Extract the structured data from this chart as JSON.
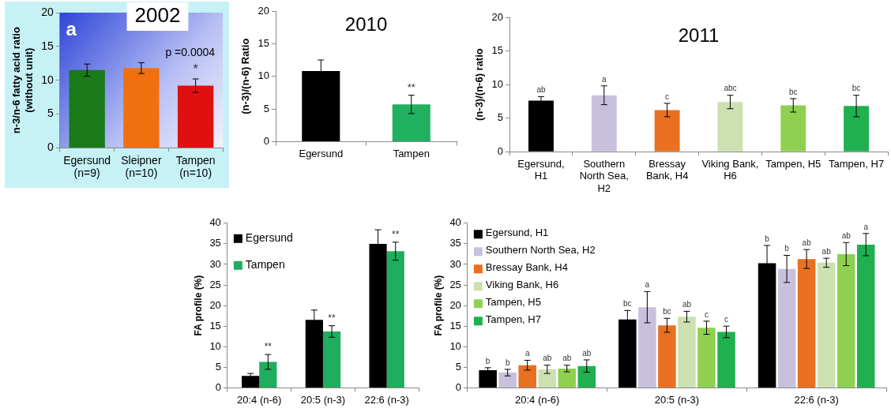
{
  "chart_data": [
    {
      "type": "bar",
      "title": "2002",
      "ylabel": "n-3/n-6 fatty acid ratio\n(without unit)",
      "categories": [
        "Egersund\n(n=9)",
        "Sleipner\n(n=10)",
        "Tampen\n(n=10)"
      ],
      "values": [
        11.5,
        11.8,
        9.2
      ],
      "errors": [
        0.9,
        0.8,
        1.0
      ],
      "value_labels": [
        null,
        null,
        "*"
      ],
      "colors": [
        "#1a7a1a",
        "#f07010",
        "#e01010"
      ],
      "ylim": [
        0,
        20
      ],
      "yticks": [
        0,
        5,
        10,
        15,
        20
      ],
      "annotations": [
        "a",
        "p =0.0004"
      ]
    },
    {
      "type": "bar",
      "title": "2010",
      "ylabel": "(n-3)/(n-6) Ratio",
      "categories": [
        "Egersund",
        "Tampen"
      ],
      "values": [
        10.8,
        5.7
      ],
      "errors": [
        1.7,
        1.4
      ],
      "value_labels": [
        null,
        "**"
      ],
      "colors": [
        "#000000",
        "#20b060"
      ],
      "ylim": [
        0,
        20
      ],
      "yticks": [
        0,
        5,
        10,
        15,
        20
      ]
    },
    {
      "type": "bar",
      "title": "2011",
      "ylabel": "(n-3)/(n-6) ratio",
      "categories": [
        "Egersund,\nH1",
        "Southern\nNorth Sea,\nH2",
        "Bressay\nBank, H4",
        "Viking Bank,\nH6",
        "Tampen, H5",
        "Tampen, H7"
      ],
      "values": [
        7.6,
        8.4,
        6.2,
        7.4,
        6.9,
        6.8
      ],
      "errors": [
        0.6,
        1.4,
        1.0,
        1.0,
        1.0,
        1.6
      ],
      "value_labels": [
        "ab",
        "a",
        "c",
        "abc",
        "bc",
        "bc"
      ],
      "colors": [
        "#000000",
        "#c8c0dc",
        "#e87020",
        "#cce0b0",
        "#90d050",
        "#20b050"
      ],
      "ylim": [
        0,
        20
      ],
      "yticks": [
        0,
        5,
        10,
        15,
        20
      ]
    },
    {
      "type": "bar",
      "ylabel": "FA profile (%)",
      "categories": [
        "20:4 (n-6)",
        "20:5 (n-3)",
        "22:6 (n-3)"
      ],
      "legend": "top left",
      "ylim": [
        0,
        40
      ],
      "yticks": [
        0,
        5,
        10,
        15,
        20,
        25,
        30,
        35,
        40
      ],
      "series": [
        {
          "name": "Egersund",
          "color": "#000000",
          "values": [
            2.9,
            16.5,
            35
          ],
          "errors": [
            0.6,
            2.4,
            3.4
          ]
        },
        {
          "name": "Tampen",
          "color": "#1fad5f",
          "values": [
            6.3,
            13.7,
            33.2
          ],
          "errors": [
            1.8,
            1.4,
            2.2
          ],
          "value_labels": [
            "**",
            "**",
            "**"
          ]
        }
      ]
    },
    {
      "type": "bar",
      "ylabel": "FA profile (%)",
      "categories": [
        "20:4 (n-6)",
        "20:5 (n-3)",
        "22:6 (n-3)"
      ],
      "legend": "top left",
      "ylim": [
        0,
        40
      ],
      "yticks": [
        0,
        5,
        10,
        15,
        20,
        25,
        30,
        35,
        40
      ],
      "series": [
        {
          "name": "Egersund, H1",
          "color": "#000000",
          "values": [
            4.3,
            16.6,
            30.3
          ],
          "errors": [
            0.6,
            2.2,
            4.3
          ],
          "value_labels": [
            "b",
            "bc",
            "b"
          ]
        },
        {
          "name": "Southern North Sea, H2",
          "color": "#c8c0dc",
          "values": [
            3.7,
            19.6,
            28.9
          ],
          "errors": [
            0.8,
            3.8,
            3.3
          ],
          "value_labels": [
            "b",
            "a",
            "b"
          ]
        },
        {
          "name": "Bressay Bank, H4",
          "color": "#e87020",
          "values": [
            5.5,
            15.2,
            31.3
          ],
          "errors": [
            1.2,
            1.7,
            2.3
          ],
          "value_labels": [
            "a",
            "bc",
            "ab"
          ]
        },
        {
          "name": "Viking Bank, H6",
          "color": "#cce0b0",
          "values": [
            4.5,
            17.3,
            30.4
          ],
          "errors": [
            1.0,
            1.3,
            1.1
          ],
          "value_labels": [
            "ab",
            "ab",
            "ab"
          ]
        },
        {
          "name": "Tampen, H5",
          "color": "#90d050",
          "values": [
            4.7,
            14.6,
            32.5
          ],
          "errors": [
            0.8,
            1.6,
            2.8
          ],
          "value_labels": [
            "ab",
            "c",
            "ab"
          ]
        },
        {
          "name": "Tampen, H7",
          "color": "#20b050",
          "values": [
            5.3,
            13.6,
            34.8
          ],
          "errors": [
            1.5,
            1.4,
            2.7
          ],
          "value_labels": [
            "ab",
            "c",
            "a"
          ]
        }
      ]
    }
  ]
}
